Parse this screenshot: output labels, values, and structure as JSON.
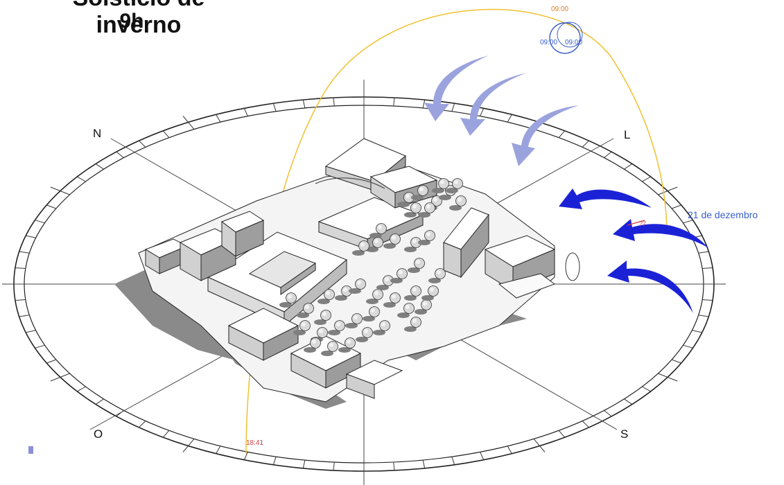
{
  "title": {
    "line1": "Solstício de inverno",
    "line2": "9h"
  },
  "cardinals": {
    "north": "N",
    "east": "L",
    "south": "S",
    "west": "O"
  },
  "sun_path": {
    "time_top": "09:00",
    "time_marker_a": "09:00",
    "time_marker_b": "09:00",
    "time_sunset": "18:41",
    "time_partial": "?7",
    "date_label": "21 de dezembro"
  },
  "colors": {
    "sun_path": "#f0c030",
    "wind_light": "#9aa3dd",
    "wind_dark": "#1b22d6",
    "time_orange": "#e08020",
    "time_blue": "#3a5ecc",
    "time_red": "#d04040",
    "ring": "#222222",
    "shadow": "#7a7a7a"
  }
}
